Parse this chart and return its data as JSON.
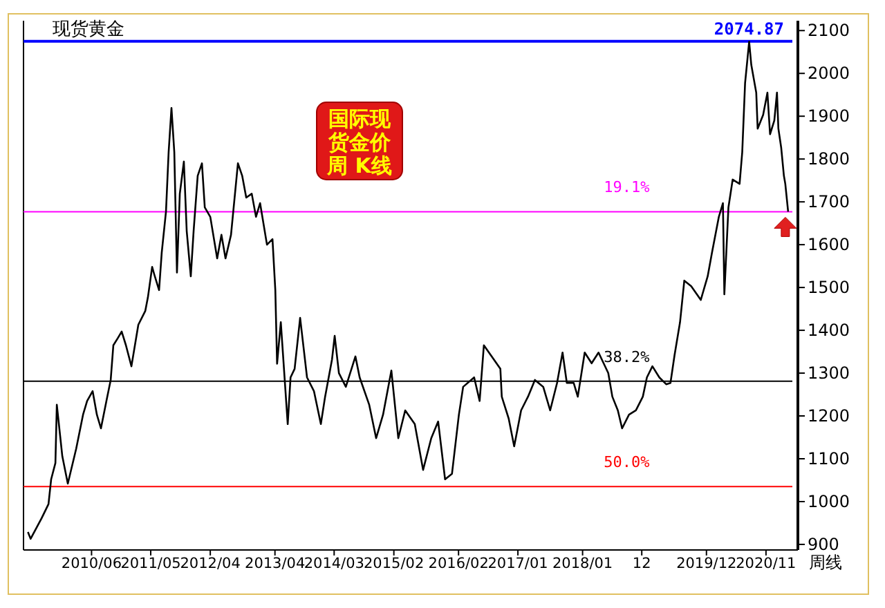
{
  "chart_data": {
    "type": "line",
    "title": "现货黄金",
    "subtitle": "国际现货金价周 K线",
    "annotations": [
      "周线",
      {
        "text": "19.1%",
        "x": "2018-05-01",
        "y": 1677
      },
      {
        "text": "38.2%",
        "x": "2018-05-01",
        "y": 1281
      },
      {
        "text": "50.0%",
        "x": "2018-05-01",
        "y": 1035
      }
    ],
    "x": [
      "2009-06-07",
      "2009-06-22",
      "2009-08-23",
      "2009-10-01",
      "2009-10-16",
      "2009-11-09",
      "2009-11-17",
      "2009-12-18",
      "2010-01-18",
      "2010-03-06",
      "2010-04-14",
      "2010-05-07",
      "2010-06-07",
      "2010-07-01",
      "2010-07-24",
      "2010-08-24",
      "2010-09-17",
      "2010-10-02",
      "2010-10-26",
      "2010-11-18",
      "2010-12-12",
      "2011-01-12",
      "2011-02-20",
      "2011-03-31",
      "2011-04-15",
      "2011-05-09",
      "2011-05-24",
      "2011-06-17",
      "2011-07-02",
      "2011-07-26",
      "2011-08-10",
      "2011-08-26",
      "2011-09-11",
      "2011-09-26",
      "2011-10-12",
      "2011-11-04",
      "2011-11-20",
      "2011-12-13",
      "2011-12-29",
      "2012-01-21",
      "2012-02-14",
      "2012-03-01",
      "2012-04-01",
      "2012-05-10",
      "2012-06-03",
      "2012-06-26",
      "2012-07-27",
      "2012-09-04",
      "2012-09-28",
      "2012-10-21",
      "2012-11-21",
      "2012-12-15",
      "2013-01-07",
      "2013-02-15",
      "2013-03-18",
      "2013-04-03",
      "2013-04-13",
      "2013-05-04",
      "2013-06-12",
      "2013-06-28",
      "2013-07-21",
      "2013-08-21",
      "2013-09-29",
      "2013-11-07",
      "2013-12-16",
      "2014-01-09",
      "2014-02-17",
      "2014-03-04",
      "2014-03-28",
      "2014-05-06",
      "2014-06-29",
      "2014-07-23",
      "2014-09-15",
      "2014-10-24",
      "2014-12-02",
      "2015-01-18",
      "2015-02-26",
      "2015-04-06",
      "2015-05-30",
      "2015-07-16",
      "2015-08-31",
      "2015-10-09",
      "2015-11-17",
      "2015-12-26",
      "2016-02-03",
      "2016-02-27",
      "2016-04-29",
      "2016-05-30",
      "2016-06-23",
      "2016-08-01",
      "2016-09-24",
      "2016-10-02",
      "2016-11-10",
      "2016-12-11",
      "2017-01-19",
      "2017-02-27",
      "2017-04-07",
      "2017-05-24",
      "2017-07-02",
      "2017-08-10",
      "2017-09-10",
      "2017-10-04",
      "2017-11-12",
      "2017-12-05",
      "2018-01-13",
      "2018-02-21",
      "2018-04-01",
      "2018-05-26",
      "2018-06-18",
      "2018-07-19",
      "2018-08-12",
      "2018-09-20",
      "2018-10-29",
      "2018-12-07",
      "2018-12-30",
      "2019-01-30",
      "2019-03-10",
      "2019-04-18",
      "2019-05-12",
      "2019-06-04",
      "2019-07-05",
      "2019-07-29",
      "2019-09-06",
      "2019-10-30",
      "2019-12-08",
      "2020-01-01",
      "2020-02-09",
      "2020-03-03",
      "2020-03-11",
      "2020-04-03",
      "2020-04-27",
      "2020-06-05",
      "2020-06-20",
      "2020-07-06",
      "2020-07-29",
      "2020-08-10",
      "2020-09-07",
      "2020-09-15",
      "2020-10-16",
      "2020-11-09",
      "2020-11-24",
      "2020-12-18",
      "2021-01-02",
      "2021-01-10",
      "2021-01-26",
      "2021-02-10",
      "2021-02-18",
      "2021-03-06"
    ],
    "series": [
      {
        "color": "#000000",
        "values": [
          929,
          913,
          961,
          994,
          1052,
          1090,
          1226,
          1106,
          1042,
          1123,
          1203,
          1235,
          1258,
          1203,
          1171,
          1235,
          1284,
          1365,
          1381,
          1397,
          1365,
          1316,
          1413,
          1445,
          1477,
          1548,
          1526,
          1494,
          1581,
          1677,
          1816,
          1919,
          1816,
          1535,
          1719,
          1794,
          1632,
          1526,
          1632,
          1761,
          1790,
          1687,
          1665,
          1568,
          1623,
          1568,
          1623,
          1790,
          1761,
          1710,
          1719,
          1665,
          1697,
          1600,
          1613,
          1494,
          1322,
          1419,
          1181,
          1290,
          1310,
          1429,
          1290,
          1258,
          1181,
          1245,
          1332,
          1387,
          1300,
          1268,
          1339,
          1290,
          1226,
          1148,
          1203,
          1306,
          1148,
          1213,
          1181,
          1074,
          1148,
          1187,
          1052,
          1065,
          1203,
          1268,
          1290,
          1235,
          1365,
          1342,
          1310,
          1245,
          1194,
          1129,
          1213,
          1245,
          1284,
          1268,
          1213,
          1277,
          1348,
          1277,
          1277,
          1245,
          1348,
          1323,
          1348,
          1300,
          1245,
          1213,
          1171,
          1203,
          1213,
          1245,
          1290,
          1316,
          1290,
          1274,
          1277,
          1342,
          1419,
          1516,
          1503,
          1471,
          1526,
          1581,
          1665,
          1697,
          1484,
          1687,
          1752,
          1742,
          1816,
          1977,
          2074,
          2020,
          1955,
          1871,
          1903,
          1955,
          1858,
          1890,
          1955,
          1871,
          1826,
          1761,
          1742,
          1677
        ]
      }
    ],
    "xlim": [
      "2009-05-13",
      "2021-04-30"
    ],
    "xticks": [
      {
        "value": "2010-06-01",
        "label": "2010/06"
      },
      {
        "value": "2011-05-01",
        "label": "2011/05"
      },
      {
        "value": "2012-04-01",
        "label": "2012/04"
      },
      {
        "value": "2013-04-01",
        "label": "2013/04"
      },
      {
        "value": "2014-03-01",
        "label": "2014/03"
      },
      {
        "value": "2015-02-01",
        "label": "2015/02"
      },
      {
        "value": "2016-02-01",
        "label": "2016/02"
      },
      {
        "value": "2017-01-01",
        "label": "2017/01"
      },
      {
        "value": "2018-01-01",
        "label": "2018/01"
      },
      {
        "value": "2018-12-01",
        "label": "12"
      },
      {
        "value": "2019-12-01",
        "label": "2019/12"
      },
      {
        "value": "2020-11-01",
        "label": "2020/11"
      }
    ],
    "ylim": [
      887,
      2123
    ],
    "yticks": [
      900,
      1000,
      1100,
      1200,
      1300,
      1400,
      1500,
      1600,
      1700,
      1800,
      1900,
      2000,
      2100
    ],
    "ref_lines": [
      {
        "axis": "y",
        "value": 2074.87,
        "label": "2074.87",
        "color": "#0000ff"
      },
      {
        "axis": "y",
        "value": 1677,
        "color": "#ff00ff"
      },
      {
        "axis": "y",
        "value": 1281,
        "color": "#000000"
      },
      {
        "axis": "y",
        "value": 1035,
        "color": "#ff0000"
      }
    ]
  }
}
